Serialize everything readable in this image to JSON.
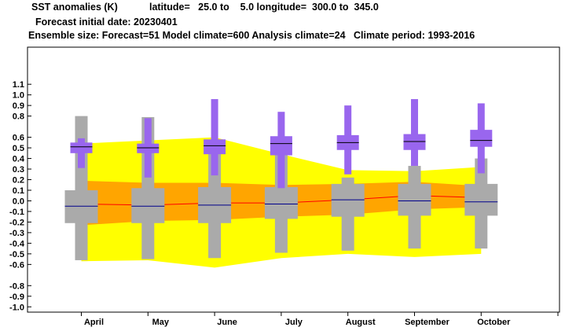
{
  "header": {
    "line1_title": "SST anomalies (K)",
    "line1_region": "latitude=   25.0 to    5.0 longitude=  300.0 to  345.0",
    "line2": "Forecast initial date: 20230401",
    "line3": "Ensemble size: Forecast=51 Model climate=600 Analysis climate=24   Climate period: 1993-2016"
  },
  "colors": {
    "climate_outer": "#ffff00",
    "climate_inner": "#ffa500",
    "climate_median": "#ff0000",
    "forecast_box": "#aaaaaa",
    "forecast_median": "#00008b",
    "analysis_box": "#9966ee",
    "analysis_median": "#000000"
  },
  "chart_data": {
    "type": "box",
    "categories": [
      "April",
      "May",
      "June",
      "July",
      "August",
      "September",
      "October"
    ],
    "ylim": [
      -1.05,
      1.45
    ],
    "yticks": [
      "-1.0",
      "-0.9",
      "-0.8",
      "-0.6",
      "-0.5",
      "-0.4",
      "-0.3",
      "-0.2",
      "-0.1",
      "0.0",
      "0.1",
      "0.2",
      "0.3",
      "0.4",
      "0.5",
      "0.6",
      "0.8",
      "0.9",
      "1.0",
      "1.1"
    ],
    "ytick_values": [
      -1.0,
      -0.9,
      -0.8,
      -0.6,
      -0.5,
      -0.4,
      -0.3,
      -0.2,
      -0.1,
      0.0,
      0.1,
      0.2,
      0.3,
      0.4,
      0.5,
      0.6,
      0.8,
      0.9,
      1.0,
      1.1
    ],
    "grid": false,
    "climate_band": {
      "outer_upper": [
        0.54,
        0.57,
        0.6,
        0.44,
        0.29,
        0.28,
        0.32
      ],
      "outer_lower": [
        -0.57,
        -0.56,
        -0.63,
        -0.54,
        -0.5,
        -0.53,
        -0.5
      ],
      "inner_upper": [
        0.19,
        0.17,
        0.17,
        0.15,
        0.16,
        0.18,
        0.14
      ],
      "inner_lower": [
        -0.23,
        -0.19,
        -0.18,
        -0.15,
        -0.13,
        -0.08,
        -0.06
      ],
      "median": [
        -0.03,
        -0.04,
        -0.02,
        -0.02,
        0.01,
        0.05,
        0.03
      ]
    },
    "forecast": [
      {
        "p2": -0.56,
        "p10": -0.21,
        "p25": -0.21,
        "median": -0.05,
        "p75": 0.1,
        "p90": 0.1,
        "p98": 0.8
      },
      {
        "p2": -0.55,
        "p10": -0.21,
        "p25": -0.21,
        "median": -0.05,
        "p75": 0.12,
        "p90": 0.12,
        "p98": 0.79
      },
      {
        "p2": -0.54,
        "p10": -0.21,
        "p25": -0.21,
        "median": -0.04,
        "p75": 0.13,
        "p90": 0.13,
        "p98": 0.57
      },
      {
        "p2": -0.49,
        "p10": -0.17,
        "p25": -0.17,
        "median": -0.03,
        "p75": 0.13,
        "p90": 0.13,
        "p98": 0.59
      },
      {
        "p2": -0.47,
        "p10": -0.15,
        "p25": -0.15,
        "median": 0.01,
        "p75": 0.16,
        "p90": 0.16,
        "p98": 0.22
      },
      {
        "p2": -0.45,
        "p10": -0.14,
        "p25": -0.14,
        "median": 0.0,
        "p75": 0.16,
        "p90": 0.16,
        "p98": 0.33
      },
      {
        "p2": -0.45,
        "p10": -0.14,
        "p25": -0.14,
        "median": -0.01,
        "p75": 0.16,
        "p90": 0.16,
        "p98": 0.4
      }
    ],
    "analysis": [
      {
        "low": 0.31,
        "box_low": 0.45,
        "median": 0.51,
        "box_high": 0.55,
        "high": 0.59
      },
      {
        "low": 0.22,
        "box_low": 0.45,
        "median": 0.5,
        "box_high": 0.54,
        "high": 0.78
      },
      {
        "low": 0.24,
        "box_low": 0.44,
        "median": 0.52,
        "box_high": 0.58,
        "high": 0.96
      },
      {
        "low": 0.12,
        "box_low": 0.43,
        "median": 0.54,
        "box_high": 0.61,
        "high": 0.84
      },
      {
        "low": 0.25,
        "box_low": 0.48,
        "median": 0.55,
        "box_high": 0.62,
        "high": 0.9
      },
      {
        "low": 0.33,
        "box_low": 0.48,
        "median": 0.56,
        "box_high": 0.63,
        "high": 0.96
      },
      {
        "low": 0.26,
        "box_low": 0.51,
        "median": 0.57,
        "box_high": 0.67,
        "high": 0.92
      }
    ]
  }
}
